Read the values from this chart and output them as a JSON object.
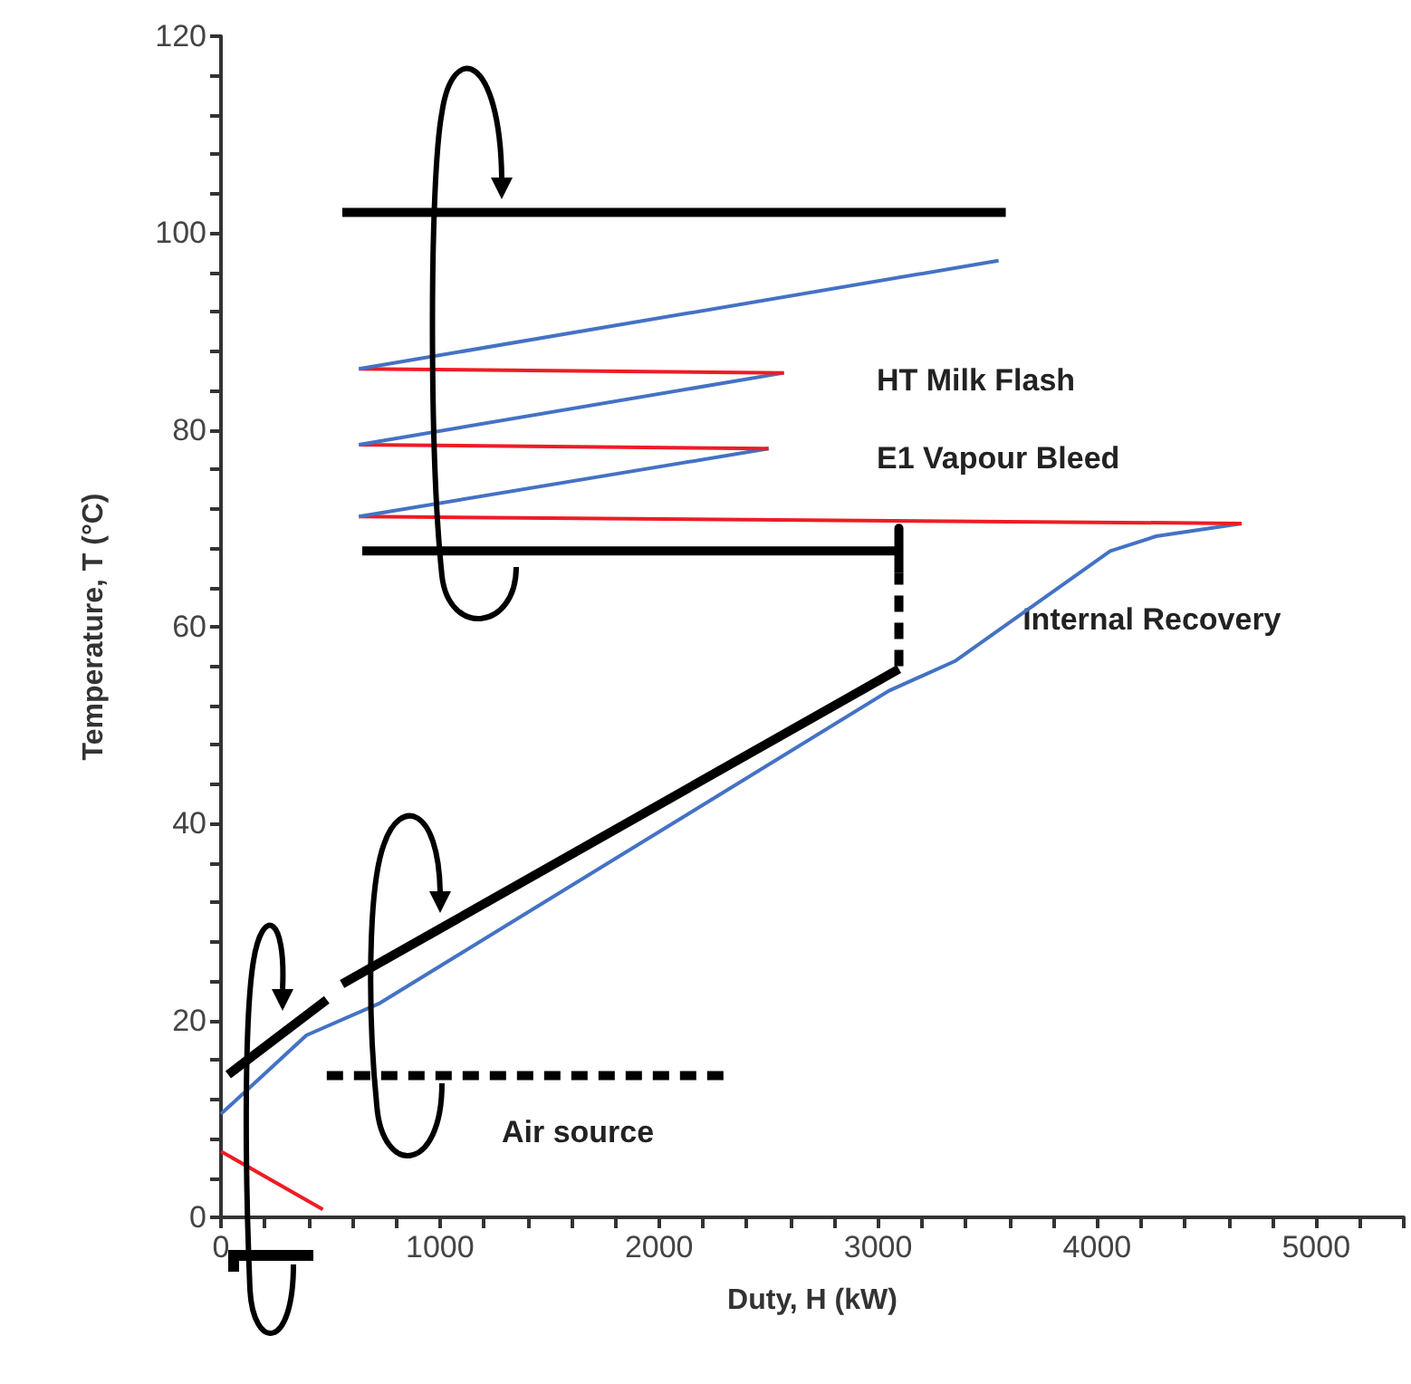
{
  "chart_data": {
    "type": "line",
    "xlabel": "Duty, H (kW)",
    "ylabel": "Temperature, T (°C)",
    "xlim": [
      0,
      5400
    ],
    "ylim": [
      0,
      120
    ],
    "xticks": [
      0,
      {
        "value": 200,
        "label": null
      },
      {
        "value": 400,
        "label": null
      },
      {
        "value": 600,
        "label": null
      },
      {
        "value": 800,
        "label": null
      },
      1000,
      {
        "value": 1200,
        "label": null
      },
      {
        "value": 1400,
        "label": null
      },
      {
        "value": 1600,
        "label": null
      },
      {
        "value": 1800,
        "label": null
      },
      2000,
      {
        "value": 2200,
        "label": null
      },
      {
        "value": 2400,
        "label": null
      },
      {
        "value": 2600,
        "label": null
      },
      {
        "value": 2800,
        "label": null
      },
      3000,
      {
        "value": 3200,
        "label": null
      },
      {
        "value": 3400,
        "label": null
      },
      {
        "value": 3600,
        "label": null
      },
      {
        "value": 3800,
        "label": null
      },
      4000,
      {
        "value": 4200,
        "label": null
      },
      {
        "value": 4400,
        "label": null
      },
      {
        "value": 4600,
        "label": null
      },
      {
        "value": 4800,
        "label": null
      },
      5000,
      {
        "value": 5200,
        "label": null
      },
      {
        "value": 5400,
        "label": null
      }
    ],
    "yticks": [
      0,
      {
        "value": 4,
        "label": null
      },
      {
        "value": 8,
        "label": null
      },
      {
        "value": 12,
        "label": null
      },
      {
        "value": 16,
        "label": null
      },
      20,
      {
        "value": 24,
        "label": null
      },
      {
        "value": 28,
        "label": null
      },
      {
        "value": 32,
        "label": null
      },
      {
        "value": 36,
        "label": null
      },
      40,
      {
        "value": 44,
        "label": null
      },
      {
        "value": 48,
        "label": null
      },
      {
        "value": 52,
        "label": null
      },
      {
        "value": 56,
        "label": null
      },
      60,
      {
        "value": 64,
        "label": null
      },
      {
        "value": 68,
        "label": null
      },
      {
        "value": 72,
        "label": null
      },
      {
        "value": 76,
        "label": null
      },
      80,
      {
        "value": 84,
        "label": null
      },
      {
        "value": 88,
        "label": null
      },
      {
        "value": 92,
        "label": null
      },
      {
        "value": 96,
        "label": null
      },
      100,
      {
        "value": 104,
        "label": null
      },
      {
        "value": 108,
        "label": null
      },
      {
        "value": 112,
        "label": null
      },
      {
        "value": 116,
        "label": null
      },
      120
    ],
    "marker": "none",
    "line_style": "solid",
    "series": [
      {
        "color": "#4472c4",
        "x": [
          0,
          390,
          720,
          3050,
          3350,
          4060,
          4270,
          4660
        ],
        "values": [
          10.5,
          18.5,
          21.7,
          53.5,
          56.5,
          67.7,
          69.2,
          70.5
        ]
      },
      {
        "color": "#ee1c25",
        "x": [
          4660,
          630
        ],
        "values": [
          70.5,
          71.2
        ]
      },
      {
        "color": "#4472c4",
        "x": [
          630,
          2500
        ],
        "values": [
          71.2,
          78.1
        ]
      },
      {
        "color": "#ee1c25",
        "x": [
          2500,
          630
        ],
        "values": [
          78.1,
          78.5
        ]
      },
      {
        "color": "#4472c4",
        "x": [
          630,
          2570
        ],
        "values": [
          78.5,
          85.8
        ]
      },
      {
        "color": "#ee1c25",
        "x": [
          2570,
          630
        ],
        "values": [
          85.8,
          86.2
        ]
      },
      {
        "color": "#4472c4",
        "x": [
          630,
          3550
        ],
        "values": [
          86.2,
          97.2
        ]
      },
      {
        "color": "#ee1c25",
        "x": [
          0,
          465
        ],
        "values": [
          6.7,
          0.8
        ]
      },
      {
        "color": "#000000",
        "x": [
          554,
          3583
        ],
        "values": [
          102.1,
          102.1
        ]
      },
      {
        "color": "#000000",
        "x": [
          645,
          3095,
          3095,
          3095
        ],
        "values": [
          67.7,
          67.7,
          70,
          65.5
        ]
      },
      {
        "color": "#000000",
        "x": [
          3095,
          3095
        ],
        "values": [
          56,
          65.5
        ],
        "line_style": "dashed"
      },
      {
        "color": "#000000",
        "x": [
          553,
          3095
        ],
        "values": [
          23.7,
          55.7
        ]
      },
      {
        "color": "#000000",
        "x": [
          33,
          483
        ],
        "values": [
          14.5,
          22.1
        ]
      },
      {
        "color": "#000000",
        "x": [
          483,
          2314
        ],
        "values": [
          14.4,
          14.4
        ],
        "line_style": "dashed"
      }
    ],
    "annotations": [
      "HT Milk Flash",
      "E1 Vapour Bleed",
      {
        "text": "Internal Recovery",
        "x": 3660,
        "y": 60.7
      },
      "Air source"
    ]
  }
}
